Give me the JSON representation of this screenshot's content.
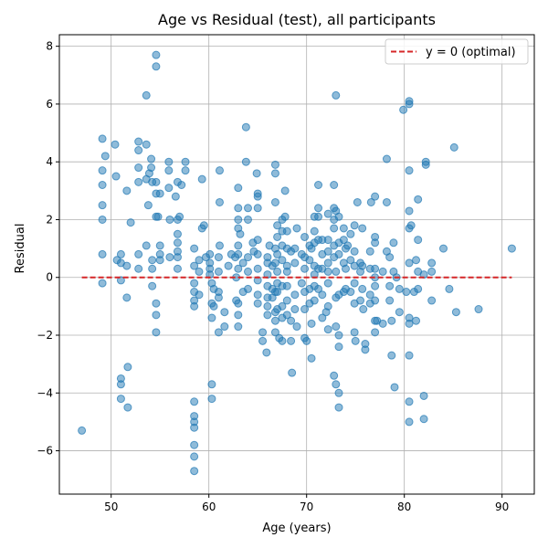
{
  "chart_data": {
    "type": "scatter",
    "title": "Age vs Residual (test), all participants",
    "xlabel": "Age (years)",
    "ylabel": "Residual",
    "xlim": [
      44.7,
      93.3
    ],
    "ylim": [
      -7.5,
      8.4
    ],
    "xticks": [
      50,
      60,
      70,
      80,
      90
    ],
    "yticks": [
      -6,
      -4,
      -2,
      0,
      2,
      4,
      6,
      8
    ],
    "grid": true,
    "point_color": "#1f77b4",
    "reference_line": {
      "label": "y = 0 (optimal)",
      "y": 0,
      "x_range": [
        47,
        91
      ],
      "color": "#d62728",
      "style": "dashed"
    },
    "legend": {
      "placement": "top-right",
      "entries": [
        "y = 0 (optimal)"
      ]
    },
    "points": [
      [
        47.0,
        -5.3
      ],
      [
        49.1,
        4.8
      ],
      [
        49.1,
        3.7
      ],
      [
        49.1,
        3.2
      ],
      [
        49.1,
        2.5
      ],
      [
        49.1,
        2.0
      ],
      [
        49.1,
        0.8
      ],
      [
        49.1,
        -0.2
      ],
      [
        49.4,
        4.2
      ],
      [
        50.4,
        4.6
      ],
      [
        50.5,
        3.5
      ],
      [
        50.6,
        0.6
      ],
      [
        51.0,
        0.8
      ],
      [
        51.0,
        0.5
      ],
      [
        51.0,
        -0.1
      ],
      [
        51.0,
        -3.5
      ],
      [
        51.0,
        -3.7
      ],
      [
        51.0,
        -4.2
      ],
      [
        51.6,
        3.0
      ],
      [
        51.6,
        0.4
      ],
      [
        51.6,
        -0.7
      ],
      [
        51.7,
        -3.1
      ],
      [
        51.7,
        -4.5
      ],
      [
        52.0,
        1.9
      ],
      [
        52.8,
        4.7
      ],
      [
        52.8,
        4.4
      ],
      [
        52.8,
        3.8
      ],
      [
        52.8,
        3.3
      ],
      [
        52.8,
        0.8
      ],
      [
        52.8,
        0.3
      ],
      [
        53.6,
        6.3
      ],
      [
        53.6,
        4.6
      ],
      [
        53.6,
        3.4
      ],
      [
        53.6,
        1.1
      ],
      [
        53.8,
        2.5
      ],
      [
        53.9,
        3.6
      ],
      [
        54.1,
        4.1
      ],
      [
        54.1,
        3.8
      ],
      [
        54.2,
        3.3
      ],
      [
        54.2,
        0.6
      ],
      [
        54.2,
        0.3
      ],
      [
        54.2,
        -0.3
      ],
      [
        54.6,
        7.7
      ],
      [
        54.6,
        7.3
      ],
      [
        54.6,
        3.3
      ],
      [
        54.6,
        2.9
      ],
      [
        54.6,
        2.1
      ],
      [
        54.6,
        -0.9
      ],
      [
        54.6,
        -1.3
      ],
      [
        54.6,
        -1.9
      ],
      [
        54.8,
        2.1
      ],
      [
        55.0,
        2.9
      ],
      [
        55.0,
        1.1
      ],
      [
        55.0,
        0.8
      ],
      [
        55.0,
        0.6
      ],
      [
        55.9,
        4.0
      ],
      [
        55.9,
        3.7
      ],
      [
        55.9,
        3.1
      ],
      [
        56.0,
        2.0
      ],
      [
        56.0,
        0.7
      ],
      [
        56.6,
        2.8
      ],
      [
        56.8,
        3.3
      ],
      [
        56.8,
        2.0
      ],
      [
        56.8,
        1.5
      ],
      [
        56.8,
        1.2
      ],
      [
        56.8,
        0.9
      ],
      [
        56.8,
        0.7
      ],
      [
        56.8,
        0.3
      ],
      [
        57.0,
        2.1
      ],
      [
        57.2,
        3.2
      ],
      [
        57.6,
        4.0
      ],
      [
        57.6,
        3.7
      ],
      [
        58.5,
        1.0
      ],
      [
        58.5,
        0.4
      ],
      [
        58.5,
        -0.2
      ],
      [
        58.5,
        -0.5
      ],
      [
        58.5,
        -0.8
      ],
      [
        58.5,
        -1.0
      ],
      [
        58.5,
        -4.3
      ],
      [
        58.5,
        -4.8
      ],
      [
        58.5,
        -5.0
      ],
      [
        58.5,
        -5.2
      ],
      [
        58.5,
        -5.8
      ],
      [
        58.5,
        -6.2
      ],
      [
        58.5,
        -6.7
      ],
      [
        59.0,
        0.6
      ],
      [
        59.0,
        0.2
      ],
      [
        59.0,
        -0.6
      ],
      [
        59.3,
        3.4
      ],
      [
        59.3,
        1.7
      ],
      [
        59.5,
        1.8
      ],
      [
        59.7,
        0.7
      ],
      [
        60.1,
        0.8
      ],
      [
        60.1,
        0.5
      ],
      [
        60.1,
        0.3
      ],
      [
        60.1,
        0.1
      ],
      [
        60.3,
        -0.2
      ],
      [
        60.3,
        -0.9
      ],
      [
        60.3,
        -1.4
      ],
      [
        60.3,
        -3.7
      ],
      [
        60.3,
        -4.2
      ],
      [
        60.5,
        -0.4
      ],
      [
        60.5,
        -1.0
      ],
      [
        61.0,
        0.7
      ],
      [
        61.0,
        0.2
      ],
      [
        61.0,
        -0.5
      ],
      [
        61.0,
        -0.7
      ],
      [
        61.0,
        -1.9
      ],
      [
        61.1,
        3.7
      ],
      [
        61.1,
        2.6
      ],
      [
        61.1,
        1.1
      ],
      [
        61.6,
        -1.2
      ],
      [
        61.6,
        -1.7
      ],
      [
        62.0,
        0.4
      ],
      [
        62.3,
        0.8
      ],
      [
        62.7,
        0.7
      ],
      [
        62.8,
        0.0
      ],
      [
        62.8,
        -0.8
      ],
      [
        63.0,
        3.1
      ],
      [
        63.0,
        2.4
      ],
      [
        63.0,
        2.0
      ],
      [
        63.0,
        1.7
      ],
      [
        63.0,
        1.1
      ],
      [
        63.0,
        0.8
      ],
      [
        63.0,
        0.3
      ],
      [
        63.0,
        -0.9
      ],
      [
        63.0,
        -1.3
      ],
      [
        63.0,
        -1.7
      ],
      [
        63.2,
        1.5
      ],
      [
        63.5,
        0.5
      ],
      [
        63.5,
        -0.5
      ],
      [
        63.8,
        5.2
      ],
      [
        63.8,
        4.0
      ],
      [
        64.0,
        2.4
      ],
      [
        64.0,
        2.0
      ],
      [
        64.0,
        0.7
      ],
      [
        64.0,
        0.2
      ],
      [
        64.0,
        -0.4
      ],
      [
        64.5,
        1.2
      ],
      [
        64.6,
        0.9
      ],
      [
        64.9,
        3.6
      ],
      [
        65.0,
        2.9
      ],
      [
        65.0,
        2.8
      ],
      [
        65.0,
        2.4
      ],
      [
        65.0,
        1.3
      ],
      [
        65.0,
        0.8
      ],
      [
        65.0,
        0.3
      ],
      [
        65.0,
        -0.1
      ],
      [
        65.0,
        -0.6
      ],
      [
        65.0,
        -0.9
      ],
      [
        65.5,
        -1.9
      ],
      [
        65.5,
        -2.2
      ],
      [
        65.9,
        -2.6
      ],
      [
        66.0,
        0.7
      ],
      [
        66.0,
        0.5
      ],
      [
        66.0,
        0.1
      ],
      [
        66.0,
        -0.3
      ],
      [
        66.0,
        -0.7
      ],
      [
        66.0,
        -1.0
      ],
      [
        66.0,
        -1.3
      ],
      [
        66.2,
        1.1
      ],
      [
        66.5,
        0.4
      ],
      [
        66.5,
        -0.4
      ],
      [
        66.5,
        -0.7
      ],
      [
        66.8,
        3.9
      ],
      [
        66.8,
        3.6
      ],
      [
        66.8,
        2.6
      ],
      [
        66.8,
        1.0
      ],
      [
        66.8,
        0.5
      ],
      [
        66.8,
        -0.5
      ],
      [
        66.8,
        -1.2
      ],
      [
        66.8,
        -1.5
      ],
      [
        66.8,
        -1.9
      ],
      [
        67.0,
        1.8
      ],
      [
        67.0,
        1.4
      ],
      [
        67.0,
        0.8
      ],
      [
        67.0,
        0.2
      ],
      [
        67.0,
        -0.2
      ],
      [
        67.0,
        -0.5
      ],
      [
        67.0,
        -1.1
      ],
      [
        67.2,
        -2.1
      ],
      [
        67.5,
        2.0
      ],
      [
        67.5,
        1.6
      ],
      [
        67.5,
        1.1
      ],
      [
        67.5,
        0.6
      ],
      [
        67.5,
        -0.3
      ],
      [
        67.5,
        -1.0
      ],
      [
        67.5,
        -1.4
      ],
      [
        67.5,
        -2.2
      ],
      [
        67.8,
        3.0
      ],
      [
        67.8,
        2.1
      ],
      [
        68.0,
        1.6
      ],
      [
        68.0,
        1.0
      ],
      [
        68.0,
        0.4
      ],
      [
        68.0,
        0.2
      ],
      [
        68.0,
        -0.3
      ],
      [
        68.0,
        -0.8
      ],
      [
        68.0,
        -1.3
      ],
      [
        68.4,
        0.9
      ],
      [
        68.4,
        -1.5
      ],
      [
        68.4,
        -2.2
      ],
      [
        68.5,
        -3.3
      ],
      [
        68.8,
        1.0
      ],
      [
        68.8,
        0.5
      ],
      [
        68.8,
        -0.6
      ],
      [
        68.8,
        -1.1
      ],
      [
        69.0,
        1.7
      ],
      [
        69.0,
        -1.7
      ],
      [
        69.5,
        0.8
      ],
      [
        69.5,
        -0.2
      ],
      [
        69.8,
        1.4
      ],
      [
        69.8,
        0.7
      ],
      [
        69.8,
        0.3
      ],
      [
        69.8,
        -0.5
      ],
      [
        69.8,
        -1.1
      ],
      [
        69.8,
        -2.1
      ],
      [
        70.0,
        -2.2
      ],
      [
        70.3,
        1.1
      ],
      [
        70.3,
        0.6
      ],
      [
        70.3,
        -0.4
      ],
      [
        70.3,
        -0.9
      ],
      [
        70.5,
        1.0
      ],
      [
        70.5,
        -1.6
      ],
      [
        70.5,
        -2.8
      ],
      [
        70.8,
        2.1
      ],
      [
        70.8,
        1.6
      ],
      [
        70.8,
        1.2
      ],
      [
        70.8,
        0.4
      ],
      [
        70.8,
        0.1
      ],
      [
        70.8,
        -0.3
      ],
      [
        70.8,
        -0.8
      ],
      [
        71.2,
        3.2
      ],
      [
        71.2,
        2.4
      ],
      [
        71.2,
        2.1
      ],
      [
        71.2,
        1.3
      ],
      [
        71.2,
        0.3
      ],
      [
        71.2,
        -0.4
      ],
      [
        71.6,
        1.3
      ],
      [
        71.6,
        0.8
      ],
      [
        71.6,
        0.3
      ],
      [
        71.6,
        -0.6
      ],
      [
        71.6,
        -1.4
      ],
      [
        72.0,
        -1.2
      ],
      [
        72.2,
        2.2
      ],
      [
        72.2,
        1.3
      ],
      [
        72.2,
        0.9
      ],
      [
        72.2,
        0.5
      ],
      [
        72.2,
        0.2
      ],
      [
        72.2,
        -0.2
      ],
      [
        72.2,
        -1.0
      ],
      [
        72.2,
        -1.8
      ],
      [
        72.8,
        3.2
      ],
      [
        72.8,
        2.4
      ],
      [
        72.8,
        2.0
      ],
      [
        72.8,
        1.7
      ],
      [
        72.8,
        1.1
      ],
      [
        72.8,
        0.7
      ],
      [
        72.8,
        -3.4
      ],
      [
        73.0,
        6.3
      ],
      [
        73.0,
        2.3
      ],
      [
        73.0,
        0.2
      ],
      [
        73.0,
        -0.7
      ],
      [
        73.0,
        -1.7
      ],
      [
        73.0,
        -3.7
      ],
      [
        73.3,
        2.1
      ],
      [
        73.3,
        1.2
      ],
      [
        73.3,
        0.8
      ],
      [
        73.3,
        -0.6
      ],
      [
        73.3,
        -2.0
      ],
      [
        73.3,
        -2.4
      ],
      [
        73.3,
        -4.0
      ],
      [
        73.3,
        -4.5
      ],
      [
        73.8,
        1.7
      ],
      [
        73.8,
        1.3
      ],
      [
        73.8,
        0.5
      ],
      [
        73.8,
        -0.5
      ],
      [
        74.0,
        1.0
      ],
      [
        74.0,
        0.3
      ],
      [
        74.0,
        -0.4
      ],
      [
        74.2,
        1.1
      ],
      [
        74.5,
        1.5
      ],
      [
        74.5,
        0.6
      ],
      [
        74.5,
        -0.5
      ],
      [
        74.9,
        1.8
      ],
      [
        74.9,
        0.9
      ],
      [
        74.9,
        0.4
      ],
      [
        74.9,
        -0.2
      ],
      [
        74.9,
        -0.9
      ],
      [
        74.9,
        -1.9
      ],
      [
        75.0,
        -2.2
      ],
      [
        75.2,
        2.6
      ],
      [
        75.5,
        0.5
      ],
      [
        75.5,
        0.2
      ],
      [
        75.5,
        -0.8
      ],
      [
        75.7,
        1.7
      ],
      [
        75.7,
        0.4
      ],
      [
        75.7,
        -0.4
      ],
      [
        75.8,
        -1.1
      ],
      [
        76.0,
        -2.3
      ],
      [
        76.0,
        -2.5
      ],
      [
        76.5,
        0.9
      ],
      [
        76.5,
        0.3
      ],
      [
        76.5,
        -0.6
      ],
      [
        76.5,
        -0.9
      ],
      [
        76.6,
        2.6
      ],
      [
        77.0,
        2.8
      ],
      [
        77.0,
        1.4
      ],
      [
        77.0,
        1.2
      ],
      [
        77.0,
        0.3
      ],
      [
        77.0,
        0.0
      ],
      [
        77.0,
        -0.3
      ],
      [
        77.0,
        -0.8
      ],
      [
        77.0,
        -1.5
      ],
      [
        77.0,
        -1.9
      ],
      [
        77.2,
        -1.5
      ],
      [
        77.8,
        0.2
      ],
      [
        77.8,
        -1.6
      ],
      [
        78.2,
        4.1
      ],
      [
        78.2,
        2.6
      ],
      [
        78.2,
        0.9
      ],
      [
        78.5,
        0.7
      ],
      [
        78.5,
        -0.3
      ],
      [
        78.5,
        -0.8
      ],
      [
        78.7,
        -1.5
      ],
      [
        78.7,
        -2.7
      ],
      [
        78.9,
        1.2
      ],
      [
        78.9,
        0.2
      ],
      [
        79.0,
        -3.8
      ],
      [
        79.2,
        0.0
      ],
      [
        79.5,
        -1.2
      ],
      [
        79.5,
        -0.4
      ],
      [
        79.9,
        5.8
      ],
      [
        80.2,
        -0.5
      ],
      [
        80.5,
        6.1
      ],
      [
        80.5,
        6.0
      ],
      [
        80.5,
        3.7
      ],
      [
        80.5,
        2.3
      ],
      [
        80.5,
        1.7
      ],
      [
        80.5,
        0.5
      ],
      [
        80.5,
        -1.4
      ],
      [
        80.5,
        -1.6
      ],
      [
        80.5,
        -2.7
      ],
      [
        80.5,
        -4.3
      ],
      [
        80.5,
        -5.0
      ],
      [
        80.7,
        1.8
      ],
      [
        81.0,
        -0.5
      ],
      [
        81.2,
        -1.5
      ],
      [
        81.2,
        0.6
      ],
      [
        81.4,
        2.7
      ],
      [
        81.4,
        1.3
      ],
      [
        81.4,
        0.2
      ],
      [
        81.4,
        -0.4
      ],
      [
        82.0,
        0.1
      ],
      [
        82.0,
        -4.1
      ],
      [
        82.0,
        -4.9
      ],
      [
        82.2,
        4.0
      ],
      [
        82.2,
        3.9
      ],
      [
        82.8,
        0.5
      ],
      [
        82.8,
        0.2
      ],
      [
        82.8,
        -0.8
      ],
      [
        84.0,
        1.0
      ],
      [
        84.6,
        -0.4
      ],
      [
        85.1,
        4.5
      ],
      [
        85.3,
        -1.2
      ],
      [
        87.6,
        -1.1
      ],
      [
        91.0,
        1.0
      ]
    ]
  }
}
